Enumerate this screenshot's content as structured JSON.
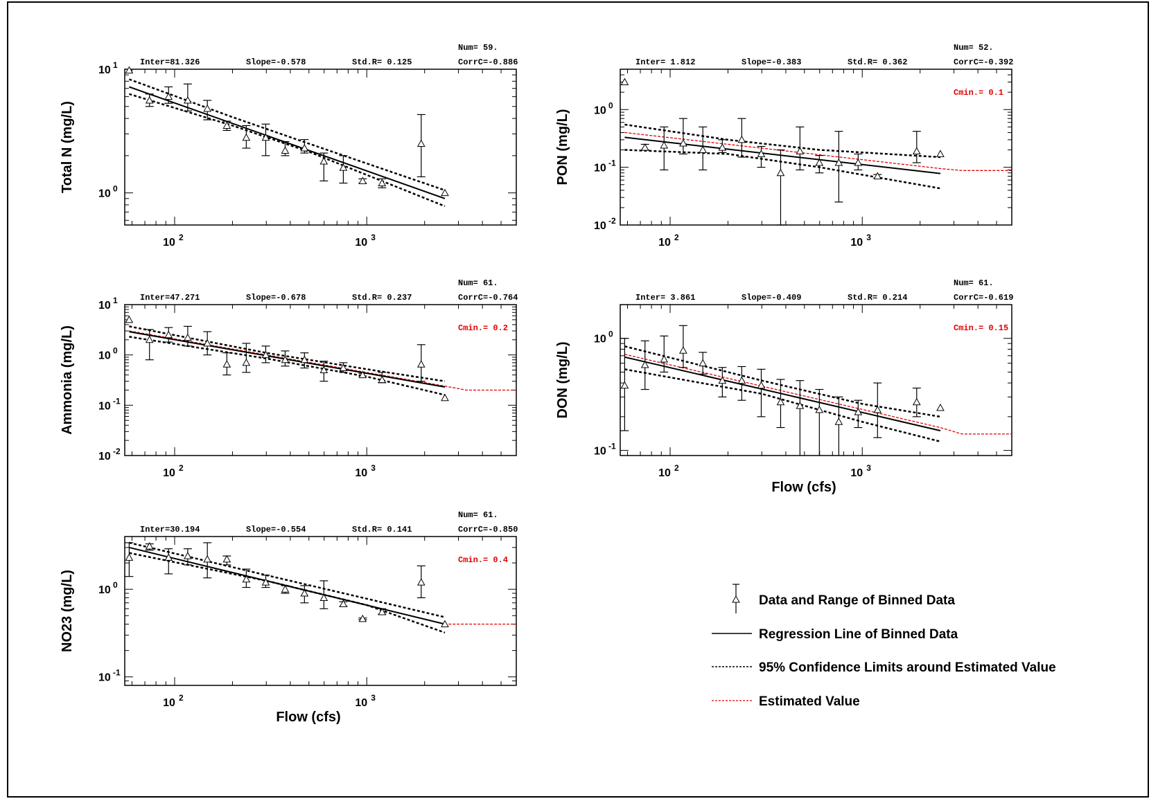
{
  "chart_data": [
    {
      "type": "scatter",
      "ylabel": "Total N (mg/L)",
      "xlabel": "",
      "x_scale": "log",
      "y_scale": "log",
      "xlim": [
        55,
        6000
      ],
      "ylim": [
        0.55,
        10
      ],
      "x_ticks": [
        {
          "base": "10",
          "exp": "2",
          "value": 100
        },
        {
          "base": "10",
          "exp": "3",
          "value": 1000
        }
      ],
      "y_ticks": [
        {
          "base": "10",
          "exp": "0",
          "value": 1
        },
        {
          "base": "10",
          "exp": "1",
          "value": 10
        }
      ],
      "stats": {
        "inter": "Inter=81.326",
        "slope": "Slope=-0.578",
        "stdr": "Std.R= 0.125",
        "num": "Num= 59.",
        "corr": "CorrC=-0.886"
      },
      "cmin": "",
      "points": [
        {
          "x": 58,
          "y": 9.8,
          "lo": 9.8,
          "hi": 9.8
        },
        {
          "x": 74,
          "y": 5.6,
          "lo": 5.0,
          "hi": 6.3
        },
        {
          "x": 93,
          "y": 6.0,
          "lo": 5.3,
          "hi": 7.2
        },
        {
          "x": 117,
          "y": 5.6,
          "lo": 4.6,
          "hi": 7.6
        },
        {
          "x": 148,
          "y": 4.8,
          "lo": 3.9,
          "hi": 5.6
        },
        {
          "x": 187,
          "y": 3.5,
          "lo": 3.2,
          "hi": 3.8
        },
        {
          "x": 236,
          "y": 2.8,
          "lo": 2.3,
          "hi": 3.5
        },
        {
          "x": 298,
          "y": 2.8,
          "lo": 2.0,
          "hi": 3.6
        },
        {
          "x": 376,
          "y": 2.2,
          "lo": 2.0,
          "hi": 2.6
        },
        {
          "x": 474,
          "y": 2.3,
          "lo": 2.1,
          "hi": 2.7
        },
        {
          "x": 598,
          "y": 1.8,
          "lo": 1.25,
          "hi": 2.1
        },
        {
          "x": 755,
          "y": 1.6,
          "lo": 1.2,
          "hi": 2.0
        },
        {
          "x": 952,
          "y": 1.25,
          "lo": 1.2,
          "hi": 1.3
        },
        {
          "x": 1201,
          "y": 1.2,
          "lo": 1.1,
          "hi": 1.3
        },
        {
          "x": 1920,
          "y": 2.5,
          "lo": 1.35,
          "hi": 4.3
        },
        {
          "x": 2550,
          "y": 1.0,
          "lo": 1.0,
          "hi": 1.0
        }
      ],
      "regression": {
        "x": [
          58,
          2550
        ],
        "y": [
          7.2,
          0.9
        ]
      },
      "upper_ci": {
        "x": [
          58,
          200,
          500,
          2550
        ],
        "y": [
          8.3,
          4.1,
          2.5,
          1.05
        ]
      },
      "lower_ci": {
        "x": [
          58,
          200,
          500,
          2550
        ],
        "y": [
          6.3,
          3.5,
          2.15,
          0.78
        ]
      },
      "estimated": null
    },
    {
      "type": "scatter",
      "ylabel": "PON (mg/L)",
      "xlabel": "",
      "x_scale": "log",
      "y_scale": "log",
      "xlim": [
        55,
        6000
      ],
      "ylim": [
        0.01,
        5
      ],
      "x_ticks": [
        {
          "base": "10",
          "exp": "2",
          "value": 100
        },
        {
          "base": "10",
          "exp": "3",
          "value": 1000
        }
      ],
      "y_ticks": [
        {
          "base": "10",
          "exp": "-2",
          "value": 0.01
        },
        {
          "base": "10",
          "exp": "-1",
          "value": 0.1
        },
        {
          "base": "10",
          "exp": "0",
          "value": 1
        }
      ],
      "stats": {
        "inter": "Inter= 1.812",
        "slope": "Slope=-0.383",
        "stdr": "Std.R= 0.362",
        "num": "Num= 52.",
        "corr": "CorrC=-0.392"
      },
      "cmin": "Cmin.= 0.1",
      "points": [
        {
          "x": 58,
          "y": 3.0,
          "lo": 3.0,
          "hi": 3.0
        },
        {
          "x": 74,
          "y": 0.22,
          "lo": 0.2,
          "hi": 0.25
        },
        {
          "x": 93,
          "y": 0.24,
          "lo": 0.09,
          "hi": 0.5
        },
        {
          "x": 117,
          "y": 0.26,
          "lo": 0.17,
          "hi": 0.7
        },
        {
          "x": 148,
          "y": 0.2,
          "lo": 0.09,
          "hi": 0.5
        },
        {
          "x": 187,
          "y": 0.22,
          "lo": 0.18,
          "hi": 0.3
        },
        {
          "x": 236,
          "y": 0.3,
          "lo": 0.15,
          "hi": 0.7
        },
        {
          "x": 298,
          "y": 0.17,
          "lo": 0.1,
          "hi": 0.23
        },
        {
          "x": 376,
          "y": 0.08,
          "lo": 0.01,
          "hi": 0.2
        },
        {
          "x": 474,
          "y": 0.19,
          "lo": 0.09,
          "hi": 0.5
        },
        {
          "x": 598,
          "y": 0.12,
          "lo": 0.08,
          "hi": 0.16
        },
        {
          "x": 755,
          "y": 0.12,
          "lo": 0.025,
          "hi": 0.42
        },
        {
          "x": 952,
          "y": 0.12,
          "lo": 0.09,
          "hi": 0.17
        },
        {
          "x": 1201,
          "y": 0.07,
          "lo": 0.065,
          "hi": 0.075
        },
        {
          "x": 1920,
          "y": 0.19,
          "lo": 0.12,
          "hi": 0.42
        },
        {
          "x": 2550,
          "y": 0.17,
          "lo": 0.17,
          "hi": 0.17
        }
      ],
      "regression": {
        "x": [
          58,
          2550
        ],
        "y": [
          0.33,
          0.078
        ]
      },
      "upper_ci": {
        "x": [
          58,
          200,
          600,
          2550
        ],
        "y": [
          0.55,
          0.3,
          0.2,
          0.15
        ]
      },
      "lower_ci": {
        "x": [
          58,
          200,
          600,
          2550
        ],
        "y": [
          0.2,
          0.17,
          0.1,
          0.043
        ]
      },
      "estimated": {
        "x": [
          58,
          2550,
          3300,
          6000
        ],
        "y": [
          0.4,
          0.095,
          0.088,
          0.088
        ]
      }
    },
    {
      "type": "scatter",
      "ylabel": "Ammonia (mg/L)",
      "xlabel": "",
      "x_scale": "log",
      "y_scale": "log",
      "xlim": [
        55,
        6000
      ],
      "ylim": [
        0.01,
        10
      ],
      "x_ticks": [
        {
          "base": "10",
          "exp": "2",
          "value": 100
        },
        {
          "base": "10",
          "exp": "3",
          "value": 1000
        }
      ],
      "y_ticks": [
        {
          "base": "10",
          "exp": "-2",
          "value": 0.01
        },
        {
          "base": "10",
          "exp": "-1",
          "value": 0.1
        },
        {
          "base": "10",
          "exp": "0",
          "value": 1
        },
        {
          "base": "10",
          "exp": "1",
          "value": 10
        }
      ],
      "stats": {
        "inter": "Inter=47.271",
        "slope": "Slope=-0.678",
        "stdr": "Std.R= 0.237",
        "num": "Num= 61.",
        "corr": "CorrC=-0.764"
      },
      "cmin": "Cmin.= 0.2",
      "points": [
        {
          "x": 58,
          "y": 5.0,
          "lo": 5.0,
          "hi": 5.0
        },
        {
          "x": 74,
          "y": 2.0,
          "lo": 0.8,
          "hi": 3.2
        },
        {
          "x": 93,
          "y": 2.5,
          "lo": 1.8,
          "hi": 3.5
        },
        {
          "x": 117,
          "y": 2.2,
          "lo": 1.5,
          "hi": 3.7
        },
        {
          "x": 148,
          "y": 1.7,
          "lo": 1.0,
          "hi": 2.9
        },
        {
          "x": 187,
          "y": 0.65,
          "lo": 0.4,
          "hi": 1.1
        },
        {
          "x": 236,
          "y": 0.7,
          "lo": 0.45,
          "hi": 1.7
        },
        {
          "x": 298,
          "y": 1.0,
          "lo": 0.7,
          "hi": 1.5
        },
        {
          "x": 376,
          "y": 0.8,
          "lo": 0.6,
          "hi": 1.2
        },
        {
          "x": 474,
          "y": 0.8,
          "lo": 0.55,
          "hi": 1.1
        },
        {
          "x": 598,
          "y": 0.5,
          "lo": 0.3,
          "hi": 0.75
        },
        {
          "x": 755,
          "y": 0.55,
          "lo": 0.45,
          "hi": 0.7
        },
        {
          "x": 952,
          "y": 0.4,
          "lo": 0.38,
          "hi": 0.43
        },
        {
          "x": 1201,
          "y": 0.32,
          "lo": 0.28,
          "hi": 0.45
        },
        {
          "x": 1920,
          "y": 0.65,
          "lo": 0.3,
          "hi": 1.6
        },
        {
          "x": 2550,
          "y": 0.14,
          "lo": 0.14,
          "hi": 0.14
        }
      ],
      "regression": {
        "x": [
          58,
          2550
        ],
        "y": [
          2.9,
          0.23
        ]
      },
      "upper_ci": {
        "x": [
          58,
          300,
          1000,
          2550
        ],
        "y": [
          3.7,
          1.1,
          0.52,
          0.3
        ]
      },
      "lower_ci": {
        "x": [
          58,
          300,
          1000,
          2550
        ],
        "y": [
          2.3,
          0.85,
          0.37,
          0.16
        ]
      },
      "estimated": {
        "x": [
          58,
          2550,
          3300,
          6000
        ],
        "y": [
          3.0,
          0.24,
          0.2,
          0.2
        ]
      }
    },
    {
      "type": "scatter",
      "ylabel": "DON (mg/L)",
      "xlabel": "Flow (cfs)",
      "x_scale": "log",
      "y_scale": "log",
      "xlim": [
        55,
        6000
      ],
      "ylim": [
        0.09,
        2
      ],
      "x_ticks": [
        {
          "base": "10",
          "exp": "2",
          "value": 100
        },
        {
          "base": "10",
          "exp": "3",
          "value": 1000
        }
      ],
      "y_ticks": [
        {
          "base": "10",
          "exp": "-1",
          "value": 0.1
        },
        {
          "base": "10",
          "exp": "0",
          "value": 1
        }
      ],
      "stats": {
        "inter": "Inter= 3.861",
        "slope": "Slope=-0.409",
        "stdr": "Std.R= 0.214",
        "num": "Num= 61.",
        "corr": "CorrC=-0.619"
      },
      "cmin": "Cmin.= 0.15",
      "points": [
        {
          "x": 58,
          "y": 0.38,
          "lo": 0.15,
          "hi": 1.0
        },
        {
          "x": 74,
          "y": 0.58,
          "lo": 0.35,
          "hi": 0.95
        },
        {
          "x": 93,
          "y": 0.65,
          "lo": 0.5,
          "hi": 1.05
        },
        {
          "x": 117,
          "y": 0.78,
          "lo": 0.55,
          "hi": 1.3
        },
        {
          "x": 148,
          "y": 0.6,
          "lo": 0.48,
          "hi": 0.75
        },
        {
          "x": 187,
          "y": 0.42,
          "lo": 0.3,
          "hi": 0.55
        },
        {
          "x": 236,
          "y": 0.42,
          "lo": 0.28,
          "hi": 0.56
        },
        {
          "x": 298,
          "y": 0.38,
          "lo": 0.2,
          "hi": 0.53
        },
        {
          "x": 376,
          "y": 0.27,
          "lo": 0.16,
          "hi": 0.43
        },
        {
          "x": 474,
          "y": 0.25,
          "lo": 0.08,
          "hi": 0.42
        },
        {
          "x": 598,
          "y": 0.23,
          "lo": 0.08,
          "hi": 0.35
        },
        {
          "x": 755,
          "y": 0.18,
          "lo": 0.08,
          "hi": 0.3
        },
        {
          "x": 952,
          "y": 0.22,
          "lo": 0.16,
          "hi": 0.28
        },
        {
          "x": 1201,
          "y": 0.23,
          "lo": 0.13,
          "hi": 0.4
        },
        {
          "x": 1920,
          "y": 0.27,
          "lo": 0.2,
          "hi": 0.36
        },
        {
          "x": 2550,
          "y": 0.24,
          "lo": 0.24,
          "hi": 0.24
        }
      ],
      "regression": {
        "x": [
          58,
          2550
        ],
        "y": [
          0.68,
          0.15
        ]
      },
      "upper_ci": {
        "x": [
          58,
          300,
          1000,
          2550
        ],
        "y": [
          0.85,
          0.42,
          0.26,
          0.2
        ]
      },
      "lower_ci": {
        "x": [
          58,
          300,
          1000,
          2550
        ],
        "y": [
          0.53,
          0.32,
          0.18,
          0.12
        ]
      },
      "estimated": {
        "x": [
          58,
          2550,
          3300,
          6000
        ],
        "y": [
          0.72,
          0.16,
          0.14,
          0.14
        ]
      }
    },
    {
      "type": "scatter",
      "ylabel": "NO23 (mg/L)",
      "xlabel": "Flow (cfs)",
      "x_scale": "log",
      "y_scale": "log",
      "xlim": [
        55,
        6000
      ],
      "ylim": [
        0.08,
        4
      ],
      "x_ticks": [
        {
          "base": "10",
          "exp": "2",
          "value": 100
        },
        {
          "base": "10",
          "exp": "3",
          "value": 1000
        }
      ],
      "y_ticks": [
        {
          "base": "10",
          "exp": "-1",
          "value": 0.1
        },
        {
          "base": "10",
          "exp": "0",
          "value": 1
        }
      ],
      "stats": {
        "inter": "Inter=30.194",
        "slope": "Slope=-0.554",
        "stdr": "Std.R= 0.141",
        "num": "Num= 61.",
        "corr": "CorrC=-0.850"
      },
      "cmin": "Cmin.= 0.4",
      "points": [
        {
          "x": 58,
          "y": 2.3,
          "lo": 1.4,
          "hi": 3.4
        },
        {
          "x": 74,
          "y": 3.1,
          "lo": 2.8,
          "hi": 3.3
        },
        {
          "x": 93,
          "y": 2.3,
          "lo": 1.5,
          "hi": 2.9
        },
        {
          "x": 117,
          "y": 2.4,
          "lo": 1.9,
          "hi": 2.9
        },
        {
          "x": 148,
          "y": 2.2,
          "lo": 1.35,
          "hi": 3.4
        },
        {
          "x": 187,
          "y": 2.2,
          "lo": 1.9,
          "hi": 2.4
        },
        {
          "x": 236,
          "y": 1.3,
          "lo": 1.05,
          "hi": 1.7
        },
        {
          "x": 298,
          "y": 1.2,
          "lo": 1.05,
          "hi": 1.45
        },
        {
          "x": 376,
          "y": 1.0,
          "lo": 0.9,
          "hi": 1.1
        },
        {
          "x": 474,
          "y": 0.9,
          "lo": 0.7,
          "hi": 1.1
        },
        {
          "x": 598,
          "y": 0.8,
          "lo": 0.6,
          "hi": 1.25
        },
        {
          "x": 755,
          "y": 0.68,
          "lo": 0.64,
          "hi": 0.72
        },
        {
          "x": 952,
          "y": 0.46,
          "lo": 0.45,
          "hi": 0.47
        },
        {
          "x": 1201,
          "y": 0.55,
          "lo": 0.52,
          "hi": 0.6
        },
        {
          "x": 1920,
          "y": 1.2,
          "lo": 0.8,
          "hi": 1.85
        },
        {
          "x": 2550,
          "y": 0.4,
          "lo": 0.4,
          "hi": 0.4
        }
      ],
      "regression": {
        "x": [
          58,
          2550
        ],
        "y": [
          3.0,
          0.4
        ]
      },
      "upper_ci": {
        "x": [
          58,
          300,
          1000,
          2550
        ],
        "y": [
          3.4,
          1.45,
          0.78,
          0.48
        ]
      },
      "lower_ci": {
        "x": [
          58,
          300,
          1000,
          2550
        ],
        "y": [
          2.6,
          1.25,
          0.66,
          0.32
        ]
      },
      "estimated": {
        "x": [
          58,
          2550,
          6000
        ],
        "y": [
          3.0,
          0.4,
          0.4
        ]
      }
    }
  ],
  "legend": {
    "items": [
      {
        "key": "data",
        "label": "Data and Range of Binned Data"
      },
      {
        "key": "regression",
        "label": "Regression Line of Binned Data"
      },
      {
        "key": "ci",
        "label": "95% Confidence Limits around Estimated Value"
      },
      {
        "key": "estimated",
        "label": "Estimated Value"
      }
    ]
  },
  "colors": {
    "estimated": "#e00000",
    "line": "#000000"
  }
}
